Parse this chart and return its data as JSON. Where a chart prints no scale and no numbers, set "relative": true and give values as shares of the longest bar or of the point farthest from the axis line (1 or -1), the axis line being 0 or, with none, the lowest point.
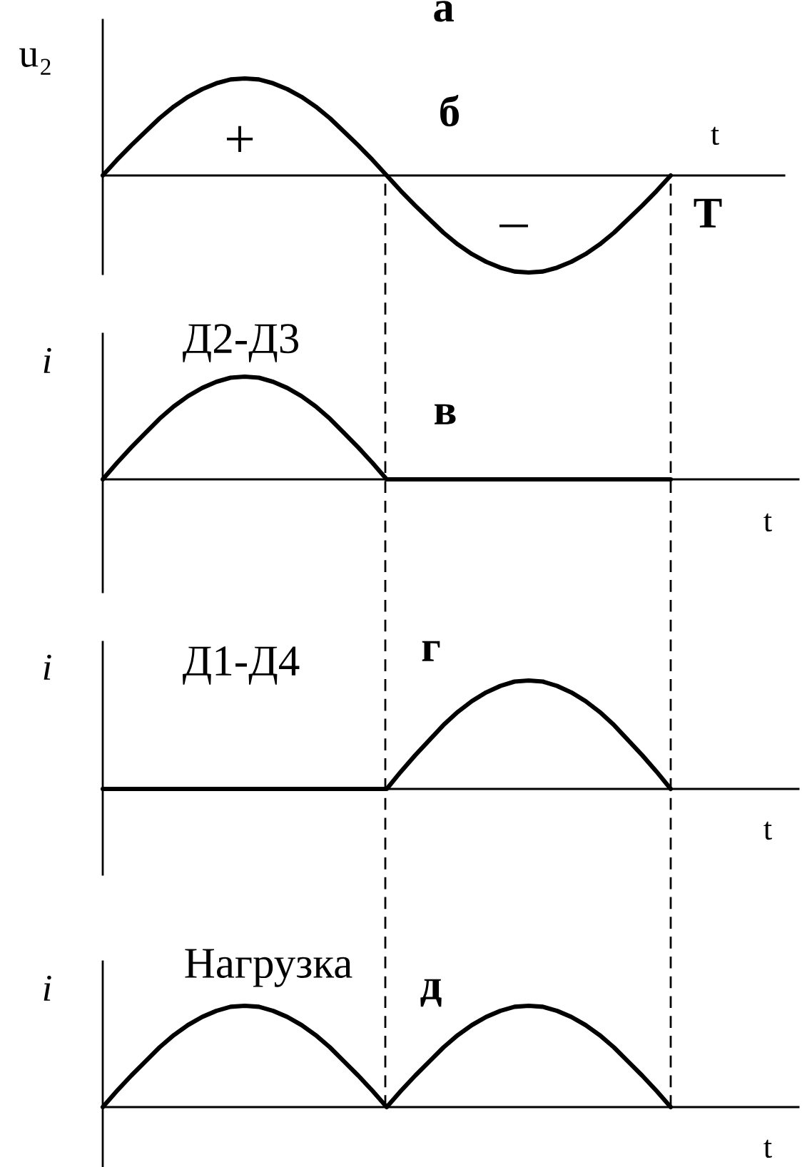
{
  "chart_data": [
    {
      "type": "line",
      "title": "а",
      "xlabel": "t",
      "ylabel": "u₂",
      "relative": true,
      "categories": [
        null,
        null,
        null,
        null,
        null,
        null,
        null,
        null,
        null,
        null,
        null,
        null,
        null,
        null,
        null,
        null,
        null,
        null,
        null,
        null,
        null,
        null,
        null,
        null,
        null,
        null,
        null,
        null,
        null,
        null,
        null,
        null,
        null,
        null,
        null,
        null,
        null,
        null,
        null,
        null,
        null,
        null,
        null,
        null,
        null,
        null,
        null,
        null,
        null
      ],
      "series": [
        {
          "color": "#000000",
          "values": [
            0,
            0.16,
            0.31,
            0.45,
            0.59,
            0.71,
            0.81,
            0.89,
            0.95,
            0.99,
            1,
            0.99,
            0.95,
            0.89,
            0.81,
            0.71,
            0.59,
            0.45,
            0.31,
            0.16,
            0,
            -0.16,
            -0.31,
            -0.45,
            -0.59,
            -0.71,
            -0.81,
            -0.89,
            -0.95,
            -0.99,
            -1,
            -0.99,
            -0.95,
            -0.89,
            -0.81,
            -0.71,
            -0.59,
            -0.45,
            -0.31,
            -0.16,
            0,
            null,
            null,
            null,
            null,
            null,
            null,
            null,
            null
          ]
        }
      ],
      "annotations": [
        "б",
        "+",
        "–",
        "T"
      ]
    },
    {
      "type": "line",
      "xlabel": "t",
      "ylabel": "i",
      "relative": true,
      "categories": [
        null,
        null,
        null,
        null,
        null,
        null,
        null,
        null,
        null,
        null,
        null,
        null,
        null,
        null,
        null,
        null,
        null,
        null,
        null,
        null,
        null,
        null,
        null,
        null,
        null,
        null,
        null,
        null,
        null,
        null,
        null,
        null,
        null,
        null,
        null,
        null,
        null,
        null,
        null,
        null,
        null,
        null,
        null,
        null,
        null,
        null,
        null,
        null,
        null,
        null
      ],
      "series": [
        {
          "name": "Д2-Д3",
          "color": "#000000",
          "values": [
            0,
            0.16,
            0.31,
            0.45,
            0.59,
            0.71,
            0.81,
            0.89,
            0.95,
            0.99,
            1,
            0.99,
            0.95,
            0.89,
            0.81,
            0.71,
            0.59,
            0.45,
            0.31,
            0.16,
            0,
            0,
            0,
            0,
            0,
            0,
            0,
            0,
            0,
            0,
            0,
            0,
            0,
            0,
            0,
            0,
            0,
            0,
            0,
            0,
            0,
            null,
            null,
            null,
            null,
            null,
            null,
            null,
            null,
            null
          ]
        }
      ],
      "annotations": [
        "в"
      ]
    },
    {
      "type": "line",
      "xlabel": "t",
      "ylabel": "i",
      "relative": true,
      "categories": [
        null,
        null,
        null,
        null,
        null,
        null,
        null,
        null,
        null,
        null,
        null,
        null,
        null,
        null,
        null,
        null,
        null,
        null,
        null,
        null,
        null,
        null,
        null,
        null,
        null,
        null,
        null,
        null,
        null,
        null,
        null,
        null,
        null,
        null,
        null,
        null,
        null,
        null,
        null,
        null,
        null,
        null,
        null,
        null,
        null,
        null,
        null,
        null,
        null,
        null
      ],
      "series": [
        {
          "name": "Д1-Д4",
          "color": "#000000",
          "values": [
            0,
            0,
            0,
            0,
            0,
            0,
            0,
            0,
            0,
            0,
            0,
            0,
            0,
            0,
            0,
            0,
            0,
            0,
            0,
            0,
            0,
            0.16,
            0.31,
            0.45,
            0.59,
            0.71,
            0.81,
            0.89,
            0.95,
            0.99,
            1,
            0.99,
            0.95,
            0.89,
            0.81,
            0.71,
            0.59,
            0.45,
            0.31,
            0.16,
            0,
            null,
            null,
            null,
            null,
            null,
            null,
            null,
            null,
            null
          ]
        }
      ],
      "annotations": [
        "г"
      ]
    },
    {
      "type": "line",
      "xlabel": "t",
      "ylabel": "i",
      "relative": true,
      "categories": [
        null,
        null,
        null,
        null,
        null,
        null,
        null,
        null,
        null,
        null,
        null,
        null,
        null,
        null,
        null,
        null,
        null,
        null,
        null,
        null,
        null,
        null,
        null,
        null,
        null,
        null,
        null,
        null,
        null,
        null,
        null,
        null,
        null,
        null,
        null,
        null,
        null,
        null,
        null,
        null,
        null,
        null,
        null,
        null,
        null,
        null,
        null,
        null,
        null,
        null
      ],
      "series": [
        {
          "name": "Нагрузка",
          "color": "#000000",
          "values": [
            0,
            0.16,
            0.31,
            0.45,
            0.59,
            0.71,
            0.81,
            0.89,
            0.95,
            0.99,
            1,
            0.99,
            0.95,
            0.89,
            0.81,
            0.71,
            0.59,
            0.45,
            0.31,
            0.16,
            0,
            0.16,
            0.31,
            0.45,
            0.59,
            0.71,
            0.81,
            0.89,
            0.95,
            0.99,
            1,
            0.99,
            0.95,
            0.89,
            0.81,
            0.71,
            0.59,
            0.45,
            0.31,
            0.16,
            0,
            null,
            null,
            null,
            null,
            null,
            null,
            null,
            null,
            null
          ]
        }
      ],
      "annotations": [
        "д"
      ]
    }
  ]
}
